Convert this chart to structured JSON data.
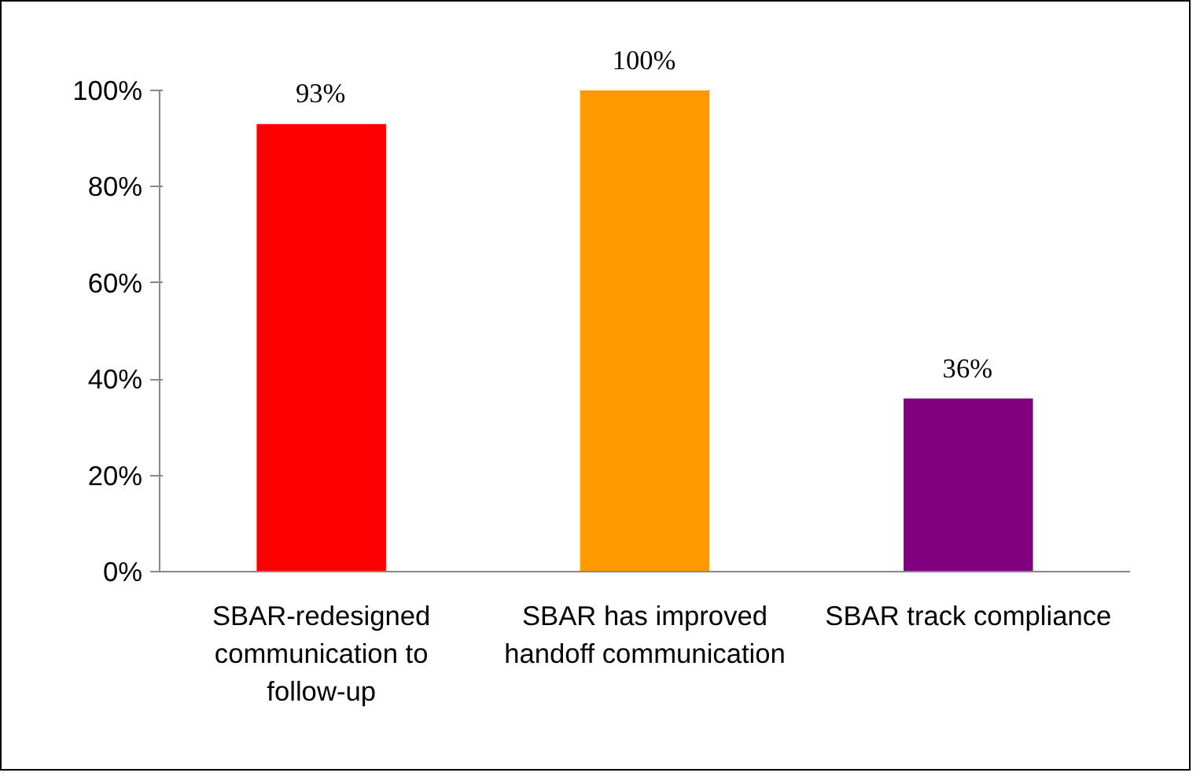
{
  "chart_data": {
    "type": "bar",
    "categories": [
      "SBAR-redesigned communication to follow-up",
      "SBAR has improved handoff communication",
      "SBAR track compliance"
    ],
    "values": [
      93,
      100,
      36
    ],
    "colors": [
      "#ff0000",
      "#ff9900",
      "#800080"
    ],
    "value_labels": [
      "93%",
      "100%",
      "36%"
    ],
    "ylim": [
      0,
      100
    ],
    "yticks": [
      {
        "value": 0,
        "label": "0%"
      },
      {
        "value": 20,
        "label": "20%"
      },
      {
        "value": 40,
        "label": "40%"
      },
      {
        "value": 60,
        "label": "60%"
      },
      {
        "value": 80,
        "label": "80%"
      },
      {
        "value": 100,
        "label": "100%"
      }
    ],
    "grid": false
  }
}
